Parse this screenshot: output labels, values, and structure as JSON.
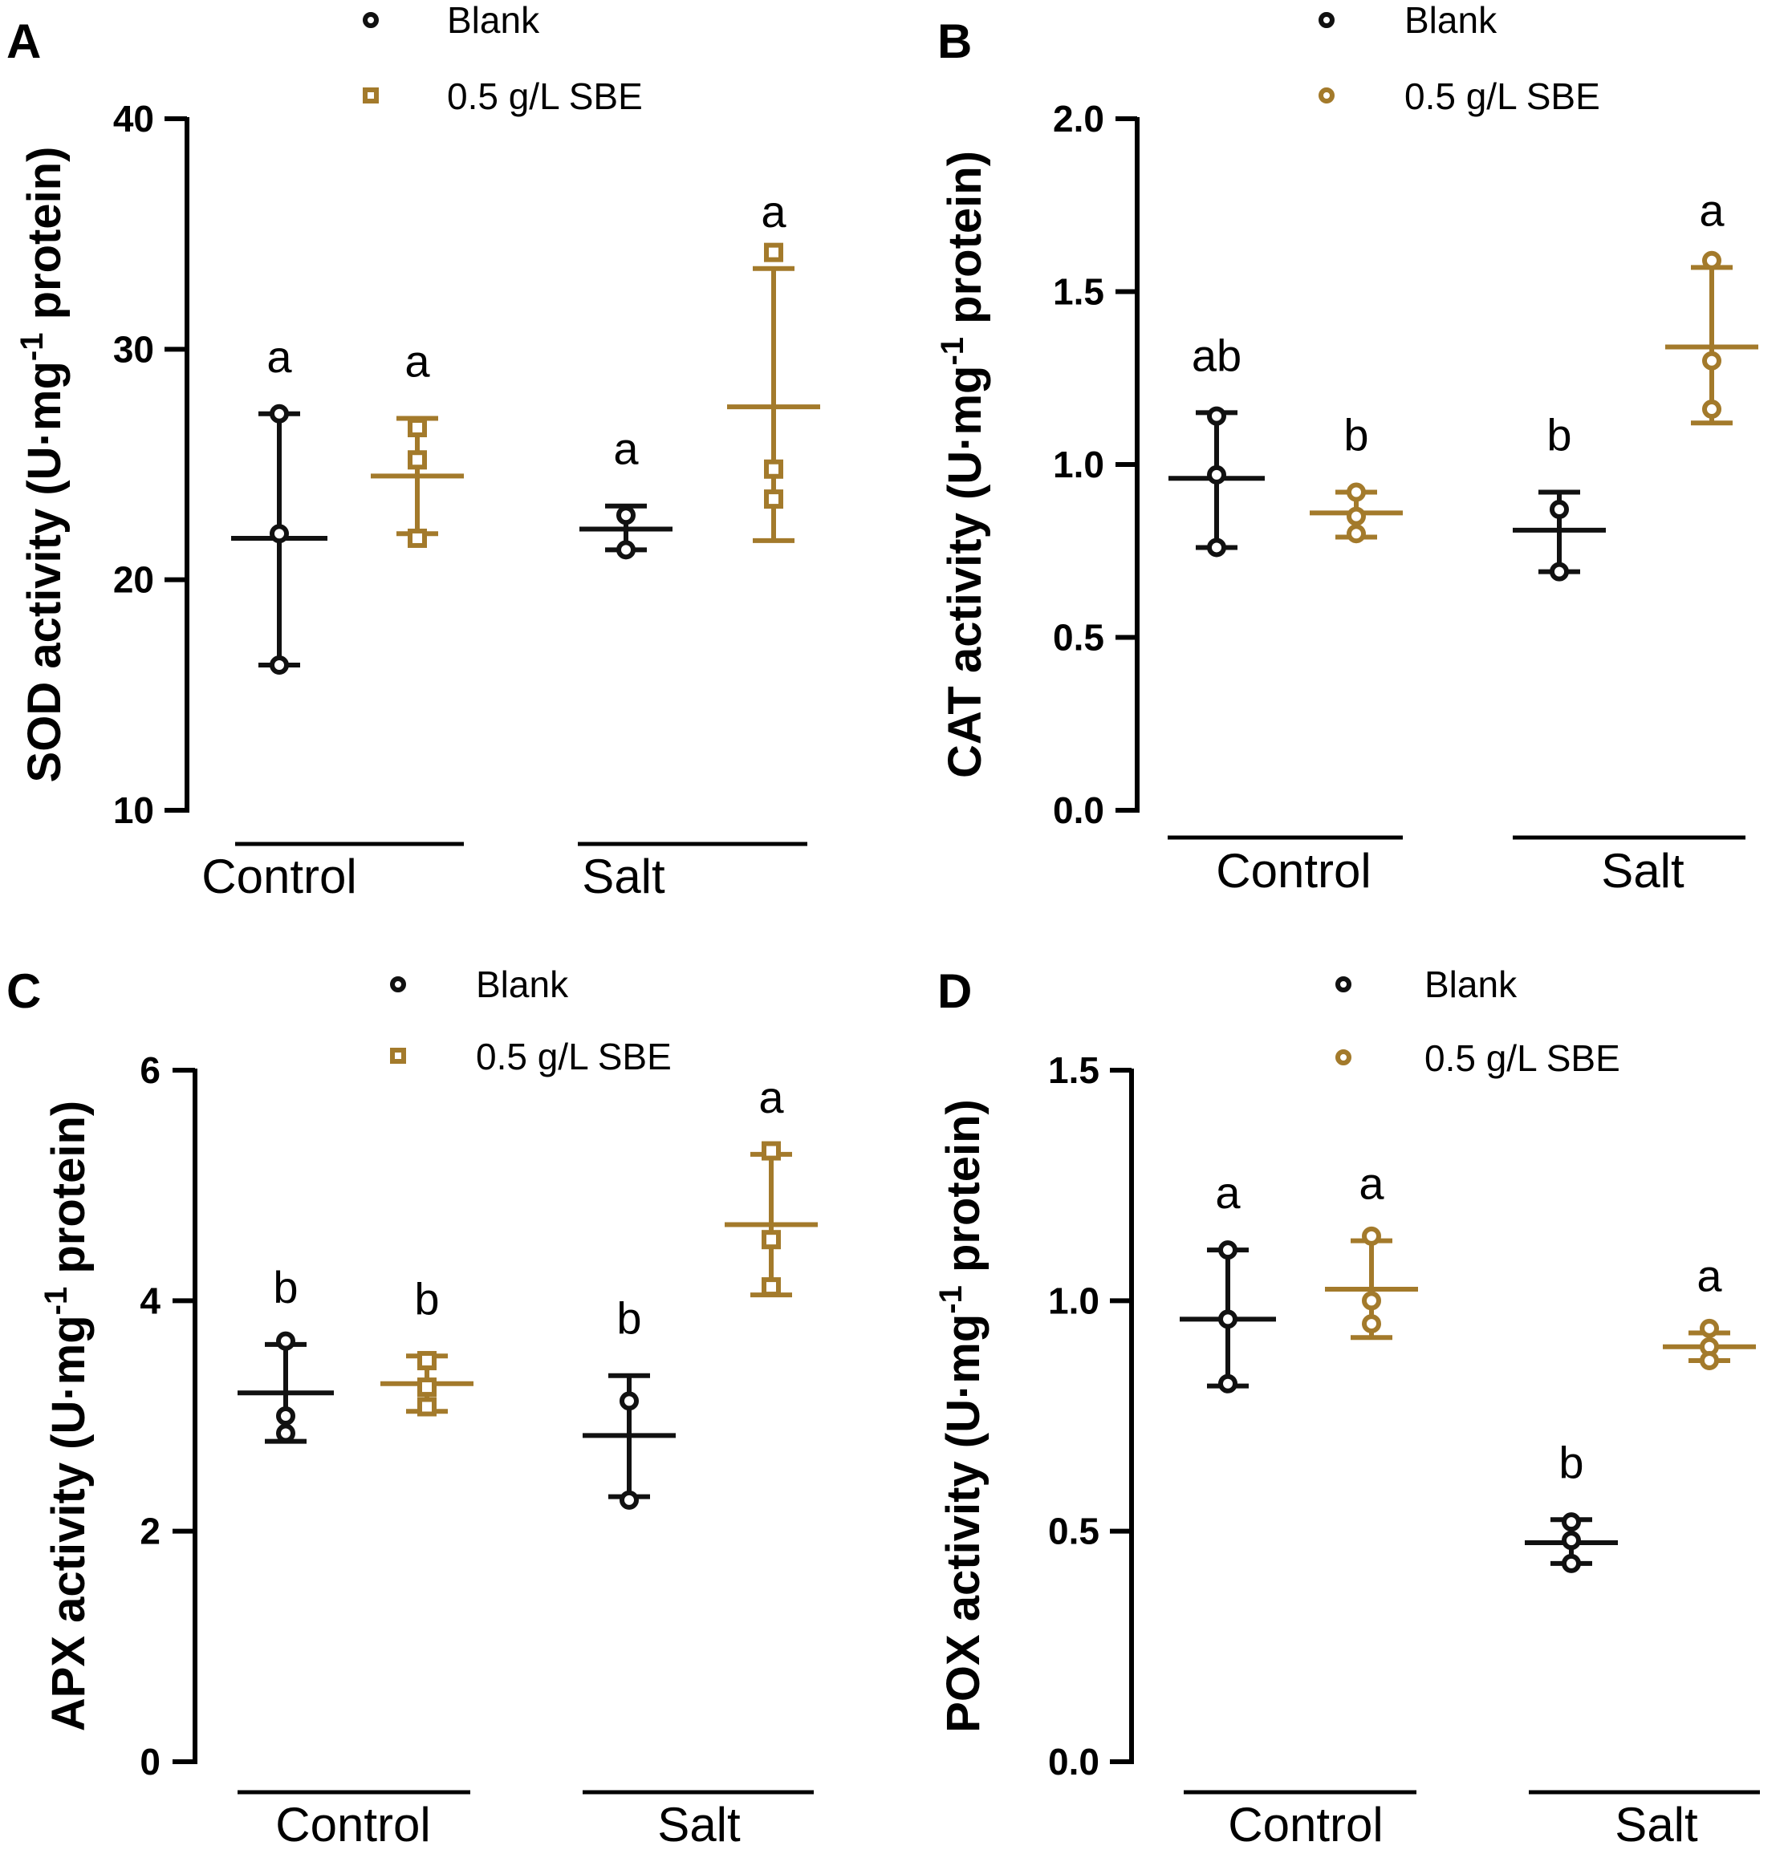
{
  "colors": {
    "blank": "#111111",
    "sbe": "#A37A2B",
    "axis": "#000000"
  },
  "chart_data": [
    {
      "panel": "A",
      "type": "scatter",
      "ylabel_main": "SOD activity (U·mg",
      "ylabel_sup": "-1",
      "ylabel_tail": " protein)",
      "ylim": [
        10,
        40
      ],
      "yticks": [
        "10",
        "20",
        "30",
        "40"
      ],
      "groups": [
        "Control",
        "Salt"
      ],
      "legend": {
        "blank": "Blank",
        "sbe": "0.5 g/L SBE",
        "marker_blank": "circle",
        "marker_sbe": "square"
      },
      "series": [
        {
          "name": "Blank",
          "color_key": "blank",
          "points": [
            {
              "group": "Control",
              "mean": 21.8,
              "sd_low": 16.3,
              "sd_high": 27.2,
              "values": [
                27.2,
                22.0,
                16.3
              ],
              "letter": "a"
            },
            {
              "group": "Salt",
              "mean": 22.2,
              "sd_low": 21.3,
              "sd_high": 23.2,
              "values": [
                22.8,
                21.3
              ],
              "letter": "a"
            }
          ]
        },
        {
          "name": "0.5 g/L SBE",
          "color_key": "sbe",
          "points": [
            {
              "group": "Control",
              "mean": 24.5,
              "sd_low": 22.0,
              "sd_high": 27.0,
              "values": [
                26.6,
                25.2,
                21.8
              ],
              "letter": "a"
            },
            {
              "group": "Salt",
              "mean": 27.5,
              "sd_low": 21.7,
              "sd_high": 33.5,
              "values": [
                34.2,
                24.8,
                23.5
              ],
              "letter": "a"
            }
          ]
        }
      ]
    },
    {
      "panel": "B",
      "type": "scatter",
      "ylabel_main": "CAT activity (U·mg",
      "ylabel_sup": "-1",
      "ylabel_tail": " protein)",
      "ylim": [
        0.0,
        2.0
      ],
      "yticks": [
        "0.0",
        "0.5",
        "1.0",
        "1.5",
        "2.0"
      ],
      "groups": [
        "Control",
        "Salt"
      ],
      "legend": {
        "blank": "Blank",
        "sbe": "0.5 g/L SBE",
        "marker_blank": "circle",
        "marker_sbe": "circle"
      },
      "series": [
        {
          "name": "Blank",
          "color_key": "blank",
          "points": [
            {
              "group": "Control",
              "mean": 0.96,
              "sd_low": 0.76,
              "sd_high": 1.15,
              "values": [
                1.14,
                0.97,
                0.76
              ],
              "letter": "ab"
            },
            {
              "group": "Salt",
              "mean": 0.81,
              "sd_low": 0.69,
              "sd_high": 0.92,
              "values": [
                0.87,
                0.69
              ],
              "letter": "b"
            }
          ]
        },
        {
          "name": "0.5 g/L SBE",
          "color_key": "sbe",
          "points": [
            {
              "group": "Control",
              "mean": 0.86,
              "sd_low": 0.79,
              "sd_high": 0.92,
              "values": [
                0.92,
                0.85,
                0.8
              ],
              "letter": "b"
            },
            {
              "group": "Salt",
              "mean": 1.34,
              "sd_low": 1.12,
              "sd_high": 1.57,
              "values": [
                1.59,
                1.3,
                1.16
              ],
              "letter": "a"
            }
          ]
        }
      ]
    },
    {
      "panel": "C",
      "type": "scatter",
      "ylabel_main": "APX activity (U·mg",
      "ylabel_sup": "-1",
      "ylabel_tail": " protein)",
      "ylim": [
        0,
        6
      ],
      "yticks": [
        "0",
        "2",
        "4",
        "6"
      ],
      "groups": [
        "Control",
        "Salt"
      ],
      "legend": {
        "blank": "Blank",
        "sbe": "0.5 g/L SBE",
        "marker_blank": "circle",
        "marker_sbe": "square"
      },
      "series": [
        {
          "name": "Blank",
          "color_key": "blank",
          "points": [
            {
              "group": "Control",
              "mean": 3.2,
              "sd_low": 2.78,
              "sd_high": 3.62,
              "values": [
                3.65,
                3.0,
                2.85
              ],
              "letter": "b"
            },
            {
              "group": "Salt",
              "mean": 2.83,
              "sd_low": 2.3,
              "sd_high": 3.35,
              "values": [
                3.13,
                2.27
              ],
              "letter": "b"
            }
          ]
        },
        {
          "name": "0.5 g/L SBE",
          "color_key": "sbe",
          "points": [
            {
              "group": "Control",
              "mean": 3.28,
              "sd_low": 3.04,
              "sd_high": 3.52,
              "values": [
                3.48,
                3.25,
                3.08
              ],
              "letter": "b"
            },
            {
              "group": "Salt",
              "mean": 4.66,
              "sd_low": 4.05,
              "sd_high": 5.27,
              "values": [
                5.3,
                4.53,
                4.12
              ],
              "letter": "a"
            }
          ]
        }
      ]
    },
    {
      "panel": "D",
      "type": "scatter",
      "ylabel_main": "POX activity (U·mg",
      "ylabel_sup": "-1",
      "ylabel_tail": " protein)",
      "ylim": [
        0.0,
        1.5
      ],
      "yticks": [
        "0.0",
        "0.5",
        "1.0",
        "1.5"
      ],
      "groups": [
        "Control",
        "Salt"
      ],
      "legend": {
        "blank": "Blank",
        "sbe": "0.5 g/L SBE",
        "marker_blank": "circle",
        "marker_sbe": "circle"
      },
      "series": [
        {
          "name": "Blank",
          "color_key": "blank",
          "points": [
            {
              "group": "Control",
              "mean": 0.96,
              "sd_low": 0.815,
              "sd_high": 1.11,
              "values": [
                1.11,
                0.96,
                0.82
              ],
              "letter": "a"
            },
            {
              "group": "Salt",
              "mean": 0.475,
              "sd_low": 0.43,
              "sd_high": 0.525,
              "values": [
                0.52,
                0.48,
                0.43
              ],
              "letter": "b"
            }
          ]
        },
        {
          "name": "0.5 g/L SBE",
          "color_key": "sbe",
          "points": [
            {
              "group": "Control",
              "mean": 1.025,
              "sd_low": 0.92,
              "sd_high": 1.13,
              "values": [
                1.14,
                1.0,
                0.95
              ],
              "letter": "a"
            },
            {
              "group": "Salt",
              "mean": 0.9,
              "sd_low": 0.87,
              "sd_high": 0.93,
              "values": [
                0.94,
                0.9,
                0.87
              ],
              "letter": "a"
            }
          ]
        }
      ]
    }
  ]
}
